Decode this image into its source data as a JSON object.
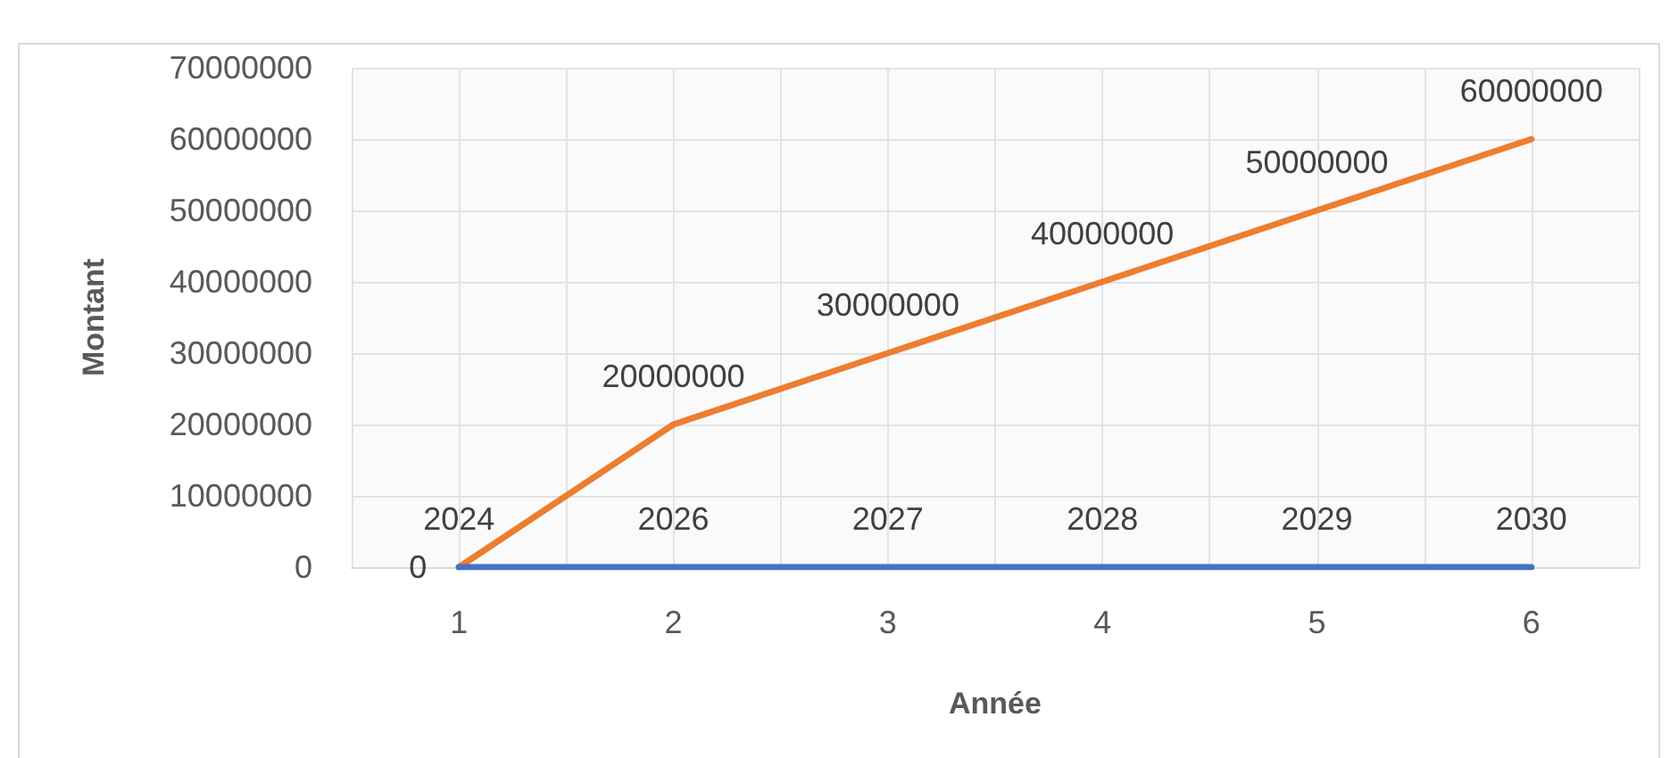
{
  "chart_data": {
    "type": "line",
    "xlabel": "Année",
    "ylabel": "Montant",
    "categories": [
      "1",
      "2",
      "3",
      "4",
      "5",
      "6"
    ],
    "series": [
      {
        "color": "#4472c4",
        "values": [
          2024,
          2026,
          2027,
          2028,
          2029,
          2030
        ]
      },
      {
        "color": "#ed7d31",
        "values": [
          0,
          20000000,
          30000000,
          40000000,
          50000000,
          60000000
        ]
      }
    ],
    "ylim": [
      0,
      70000000
    ],
    "yticks": [
      0,
      10000000,
      20000000,
      30000000,
      40000000,
      50000000,
      60000000,
      70000000
    ],
    "grid": true,
    "marker": "none",
    "line_style": "solid",
    "data_labels": true
  }
}
